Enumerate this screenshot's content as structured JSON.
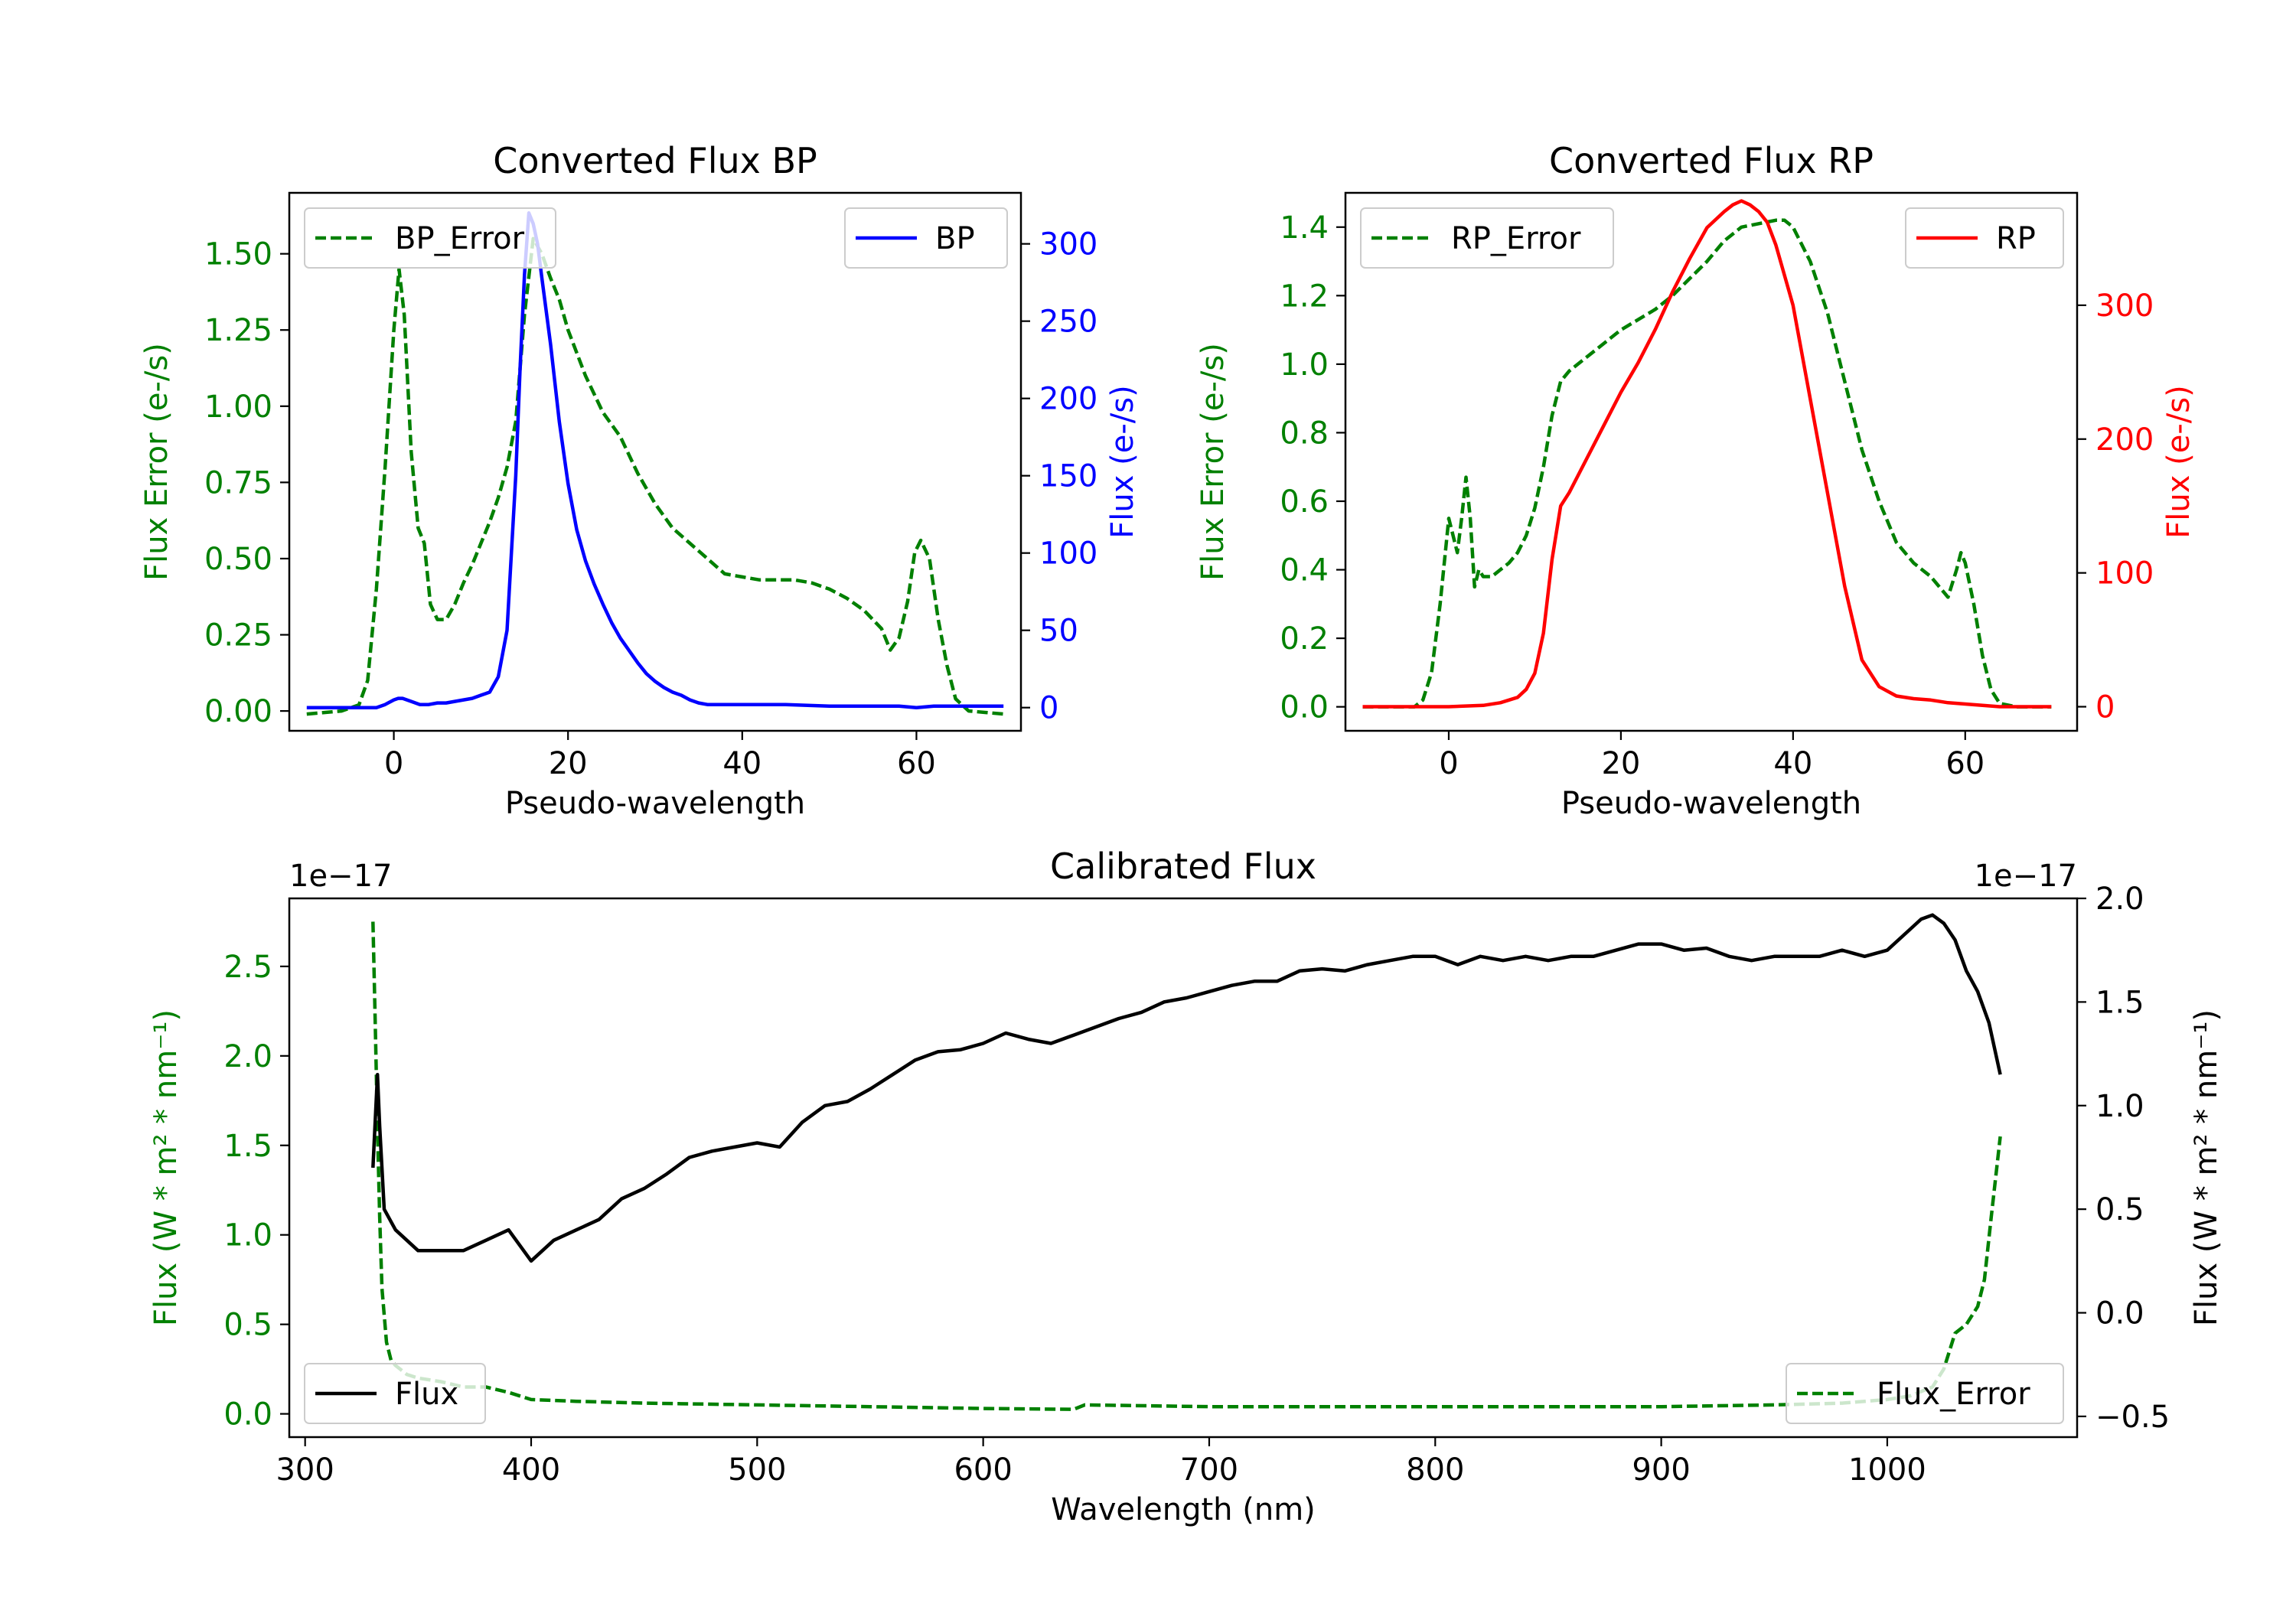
{
  "colors": {
    "green": "#008000",
    "blue": "#0000ff",
    "red": "#ff0000",
    "black": "#000000"
  },
  "chart_data": [
    {
      "id": "bp",
      "type": "line",
      "title": "Converted Flux BP",
      "xlabel": "Pseudo-wavelength",
      "xlim": [
        -12,
        72
      ],
      "xticks": [
        0,
        20,
        40,
        60
      ],
      "left_axis": {
        "label": "Flux Error (e-/s)",
        "color": "#008000",
        "lim": [
          -0.065,
          1.7
        ],
        "ticks": [
          0.0,
          0.25,
          0.5,
          0.75,
          1.0,
          1.25,
          1.5
        ],
        "tick_labels": [
          "0.00",
          "0.25",
          "0.50",
          "0.75",
          "1.00",
          "1.25",
          "1.50"
        ]
      },
      "right_axis": {
        "label": "Flux (e-/s)",
        "color": "#0000ff",
        "lim": [
          -15,
          333
        ],
        "ticks": [
          0,
          50,
          100,
          150,
          200,
          250,
          300
        ],
        "tick_labels": [
          "0",
          "50",
          "100",
          "150",
          "200",
          "250",
          "300"
        ]
      },
      "series": [
        {
          "name": "BP_Error",
          "axis": "left",
          "style": "dashed",
          "color": "#008000",
          "x": [
            -10,
            -6,
            -4,
            -3,
            -2,
            -1,
            0,
            0.6,
            1.2,
            2,
            2.8,
            3.5,
            4.2,
            5,
            6,
            7,
            8,
            9,
            10,
            11,
            12,
            13,
            14,
            15,
            16,
            17,
            18,
            19,
            20,
            22,
            24,
            26,
            28,
            30,
            32,
            34,
            36,
            38,
            40,
            42,
            44,
            46,
            48,
            50,
            52,
            54,
            56,
            57,
            58,
            59,
            59.8,
            60.5,
            61.5,
            62.5,
            63.5,
            64.5,
            66,
            68,
            70
          ],
          "y": [
            -0.01,
            0.0,
            0.02,
            0.1,
            0.4,
            0.8,
            1.25,
            1.45,
            1.3,
            0.85,
            0.6,
            0.55,
            0.35,
            0.3,
            0.3,
            0.35,
            0.42,
            0.48,
            0.55,
            0.62,
            0.7,
            0.8,
            0.95,
            1.3,
            1.55,
            1.5,
            1.42,
            1.35,
            1.25,
            1.1,
            0.98,
            0.9,
            0.78,
            0.68,
            0.6,
            0.55,
            0.5,
            0.45,
            0.44,
            0.43,
            0.43,
            0.43,
            0.42,
            0.4,
            0.37,
            0.33,
            0.27,
            0.2,
            0.24,
            0.36,
            0.52,
            0.56,
            0.5,
            0.3,
            0.15,
            0.04,
            0.0,
            -0.005,
            -0.01
          ],
          "style_note": "dashed"
        },
        {
          "name": "BP",
          "axis": "right",
          "style": "solid",
          "color": "#0000ff",
          "x": [
            -10,
            -6,
            -4,
            -2,
            -1,
            0,
            0.5,
            1,
            2,
            3,
            4,
            5,
            6,
            7,
            8,
            9,
            10,
            11,
            12,
            13,
            13.5,
            14,
            14.5,
            15,
            15.5,
            16,
            16.5,
            17,
            18,
            19,
            20,
            21,
            22,
            23,
            24,
            25,
            26,
            27,
            28,
            29,
            30,
            31,
            32,
            33,
            34,
            35,
            36,
            38,
            40,
            45,
            50,
            55,
            58,
            60,
            62,
            64,
            66,
            68,
            70
          ],
          "y": [
            0,
            0,
            0,
            0,
            2,
            5,
            6,
            6,
            4,
            2,
            2,
            3,
            3,
            4,
            5,
            6,
            8,
            10,
            20,
            50,
            100,
            150,
            220,
            280,
            320,
            313,
            300,
            278,
            235,
            185,
            145,
            115,
            95,
            80,
            67,
            55,
            45,
            37,
            29,
            22,
            17,
            13,
            10,
            8,
            5,
            3,
            2,
            2,
            2,
            2,
            1,
            1,
            1,
            0,
            1,
            1,
            1,
            1,
            1
          ]
        }
      ],
      "legend": [
        {
          "label": "BP_Error",
          "position": "upper-left"
        },
        {
          "label": "BP",
          "position": "upper-right"
        }
      ]
    },
    {
      "id": "rp",
      "type": "line",
      "title": "Converted Flux RP",
      "xlabel": "Pseudo-wavelength",
      "xlim": [
        -12,
        73
      ],
      "xticks": [
        0,
        20,
        40,
        60
      ],
      "left_axis": {
        "label": "Flux Error (e-/s)",
        "color": "#008000",
        "lim": [
          -0.07,
          1.5
        ],
        "ticks": [
          0.0,
          0.2,
          0.4,
          0.6,
          0.8,
          1.0,
          1.2,
          1.4
        ],
        "tick_labels": [
          "0.0",
          "0.2",
          "0.4",
          "0.6",
          "0.8",
          "1.0",
          "1.2",
          "1.4"
        ]
      },
      "right_axis": {
        "label": "Flux (e-/s)",
        "color": "#ff0000",
        "lim": [
          -18,
          384
        ],
        "ticks": [
          0,
          100,
          200,
          300
        ],
        "tick_labels": [
          "0",
          "100",
          "200",
          "300"
        ]
      },
      "series": [
        {
          "name": "RP_Error",
          "axis": "left",
          "style": "dashed",
          "color": "#008000",
          "x": [
            -10,
            -4,
            -3,
            -2,
            -1,
            0,
            0.5,
            1,
            1.5,
            2,
            2.5,
            3,
            3.5,
            4,
            5,
            6,
            7,
            8,
            9,
            10,
            11,
            12,
            13,
            14,
            16,
            18,
            20,
            22,
            24,
            26,
            28,
            30,
            32,
            34,
            36,
            38,
            39,
            40,
            42,
            44,
            46,
            48,
            50,
            52,
            54,
            56,
            58,
            59,
            59.5,
            60,
            61,
            62,
            63,
            64,
            66,
            68,
            70
          ],
          "y": [
            0,
            0,
            0.02,
            0.1,
            0.3,
            0.55,
            0.5,
            0.45,
            0.55,
            0.67,
            0.55,
            0.35,
            0.4,
            0.38,
            0.38,
            0.4,
            0.42,
            0.45,
            0.5,
            0.58,
            0.7,
            0.85,
            0.95,
            0.98,
            1.02,
            1.06,
            1.1,
            1.13,
            1.16,
            1.2,
            1.25,
            1.3,
            1.36,
            1.4,
            1.41,
            1.42,
            1.42,
            1.4,
            1.3,
            1.15,
            0.95,
            0.75,
            0.6,
            0.48,
            0.42,
            0.38,
            0.32,
            0.4,
            0.45,
            0.42,
            0.3,
            0.15,
            0.05,
            0.01,
            0.0,
            0.0,
            0.0
          ],
          "style_note": "dashed"
        },
        {
          "name": "RP",
          "axis": "right",
          "style": "solid",
          "color": "#ff0000",
          "x": [
            -10,
            -4,
            0,
            4,
            6,
            8,
            9,
            10,
            11,
            12,
            13,
            14,
            16,
            18,
            20,
            22,
            24,
            26,
            28,
            30,
            32,
            33,
            34,
            35,
            36,
            37,
            38,
            40,
            42,
            44,
            46,
            48,
            50,
            52,
            54,
            56,
            58,
            60,
            62,
            64,
            66,
            68,
            70
          ],
          "y": [
            0,
            0,
            0,
            1,
            3,
            7,
            13,
            25,
            55,
            110,
            150,
            160,
            185,
            210,
            235,
            257,
            282,
            310,
            335,
            358,
            370,
            375,
            378,
            375,
            370,
            362,
            345,
            300,
            230,
            160,
            90,
            35,
            15,
            8,
            6,
            5,
            3,
            2,
            1,
            0,
            0,
            0,
            0
          ]
        }
      ],
      "legend": [
        {
          "label": "RP_Error",
          "position": "upper-left"
        },
        {
          "label": "RP",
          "position": "upper-right"
        }
      ]
    },
    {
      "id": "cal",
      "type": "line",
      "title": "Calibrated Flux",
      "xlabel": "Wavelength (nm)",
      "xlim": [
        293,
        1084
      ],
      "xticks": [
        300,
        400,
        500,
        600,
        700,
        800,
        900,
        1000
      ],
      "left_axis": {
        "label": "Flux (W * m² * nm⁻¹)",
        "color": "#008000",
        "lim": [
          -0.13,
          2.88
        ],
        "ticks": [
          0.0,
          0.5,
          1.0,
          1.5,
          2.0,
          2.5
        ],
        "tick_labels": [
          "0.0",
          "0.5",
          "1.0",
          "1.5",
          "2.0",
          "2.5"
        ],
        "offset_text": "1e−17"
      },
      "right_axis": {
        "label": "Flux (W * m² * nm⁻¹)",
        "color": "#000000",
        "lim": [
          -0.6,
          2.0
        ],
        "ticks": [
          -0.5,
          0.0,
          0.5,
          1.0,
          1.5,
          2.0
        ],
        "tick_labels": [
          "−0.5",
          "0.0",
          "0.5",
          "1.0",
          "1.5",
          "2.0"
        ],
        "offset_text": "1e−17"
      },
      "series": [
        {
          "name": "Flux_Error",
          "axis": "left",
          "style": "dashed",
          "color": "#008000",
          "x": [
            330,
            331,
            332,
            333,
            334,
            336,
            338,
            340,
            345,
            350,
            360,
            370,
            380,
            390,
            400,
            420,
            450,
            500,
            550,
            600,
            640,
            645,
            700,
            800,
            900,
            950,
            980,
            1000,
            1010,
            1020,
            1025,
            1030,
            1035,
            1040,
            1043,
            1046,
            1050
          ],
          "y": [
            2.75,
            2.2,
            1.6,
            1.1,
            0.7,
            0.4,
            0.3,
            0.27,
            0.22,
            0.2,
            0.18,
            0.15,
            0.15,
            0.12,
            0.08,
            0.07,
            0.06,
            0.05,
            0.04,
            0.03,
            0.025,
            0.05,
            0.04,
            0.04,
            0.04,
            0.05,
            0.06,
            0.08,
            0.1,
            0.15,
            0.25,
            0.45,
            0.5,
            0.6,
            0.75,
            1.1,
            1.55
          ]
        },
        {
          "name": "Flux",
          "axis": "right",
          "style": "solid",
          "color": "#000000",
          "x": [
            330,
            332,
            333,
            335,
            340,
            350,
            360,
            370,
            380,
            390,
            400,
            410,
            420,
            430,
            440,
            450,
            460,
            470,
            480,
            490,
            500,
            510,
            520,
            530,
            540,
            550,
            560,
            570,
            580,
            590,
            600,
            610,
            620,
            630,
            640,
            650,
            660,
            670,
            680,
            690,
            700,
            710,
            720,
            730,
            740,
            750,
            760,
            770,
            780,
            790,
            800,
            810,
            820,
            830,
            840,
            850,
            860,
            870,
            880,
            890,
            900,
            910,
            920,
            930,
            940,
            950,
            960,
            970,
            980,
            990,
            1000,
            1010,
            1015,
            1020,
            1025,
            1030,
            1035,
            1040,
            1045,
            1050
          ],
          "y": [
            0.7,
            1.15,
            0.9,
            0.5,
            0.4,
            0.3,
            0.3,
            0.3,
            0.35,
            0.4,
            0.25,
            0.35,
            0.4,
            0.45,
            0.55,
            0.6,
            0.67,
            0.75,
            0.78,
            0.8,
            0.82,
            0.8,
            0.92,
            1.0,
            1.02,
            1.08,
            1.15,
            1.22,
            1.26,
            1.27,
            1.3,
            1.35,
            1.32,
            1.3,
            1.34,
            1.38,
            1.42,
            1.45,
            1.5,
            1.52,
            1.55,
            1.58,
            1.6,
            1.6,
            1.65,
            1.66,
            1.65,
            1.68,
            1.7,
            1.72,
            1.72,
            1.68,
            1.72,
            1.7,
            1.72,
            1.7,
            1.72,
            1.72,
            1.75,
            1.78,
            1.78,
            1.75,
            1.76,
            1.72,
            1.7,
            1.72,
            1.72,
            1.72,
            1.75,
            1.72,
            1.75,
            1.85,
            1.9,
            1.92,
            1.88,
            1.8,
            1.65,
            1.55,
            1.4,
            1.15
          ]
        }
      ],
      "legend": [
        {
          "label": "Flux",
          "position": "lower-left"
        },
        {
          "label": "Flux_Error",
          "position": "lower-right"
        }
      ]
    }
  ]
}
